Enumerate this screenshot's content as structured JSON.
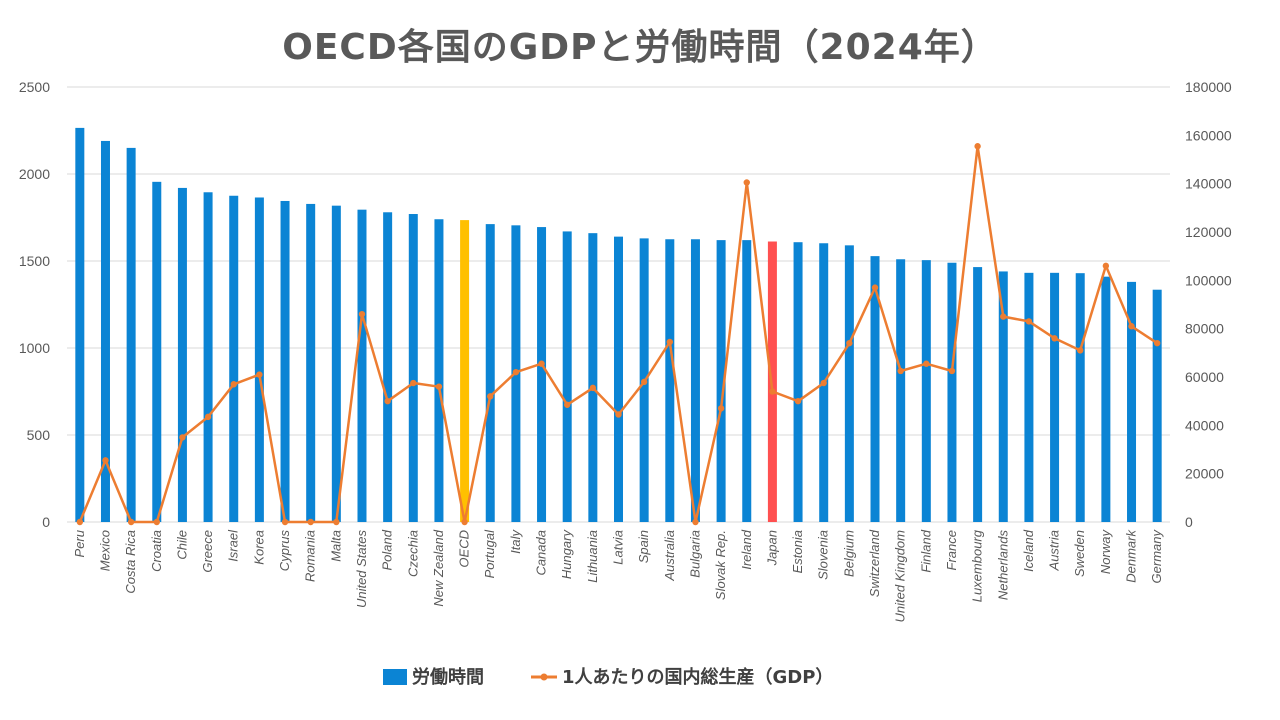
{
  "chart_data": {
    "type": "bar+line",
    "title": "OECD各国のGDPと労働時間（2024年）",
    "categories": [
      "Peru",
      "Mexico",
      "Costa Rica",
      "Croatia",
      "Chile",
      "Greece",
      "Israel",
      "Korea",
      "Cyprus",
      "Romania",
      "Malta",
      "United States",
      "Poland",
      "Czechia",
      "New Zealand",
      "OECD",
      "Portugal",
      "Italy",
      "Canada",
      "Hungary",
      "Lithuania",
      "Latvia",
      "Spain",
      "Australia",
      "Bulgaria",
      "Slovak Rep.",
      "Ireland",
      "Japan",
      "Estonia",
      "Slovenia",
      "Belgium",
      "Switzerland",
      "United Kingdom",
      "Finland",
      "France",
      "Luxembourg",
      "Netherlands",
      "Iceland",
      "Austria",
      "Sweden",
      "Norway",
      "Denmark",
      "Germany"
    ],
    "series": [
      {
        "name": "労働時間",
        "type": "bar",
        "axis": "left",
        "color": "#0B84D4",
        "values": [
          2265,
          2190,
          2150,
          1955,
          1920,
          1895,
          1875,
          1865,
          1845,
          1828,
          1818,
          1795,
          1780,
          1770,
          1740,
          1735,
          1712,
          1705,
          1695,
          1670,
          1660,
          1640,
          1630,
          1625,
          1625,
          1620,
          1620,
          1612,
          1608,
          1602,
          1590,
          1528,
          1510,
          1505,
          1490,
          1465,
          1440,
          1432,
          1432,
          1430,
          1410,
          1380,
          1335
        ]
      },
      {
        "name": "1人あたりの国内総生産（GDP）",
        "type": "line",
        "axis": "right",
        "color": "#ED7D31",
        "values": [
          0,
          25500,
          0,
          0,
          35000,
          43500,
          57000,
          61000,
          0,
          0,
          0,
          86000,
          50000,
          57500,
          56000,
          0,
          52000,
          62000,
          65500,
          48500,
          55500,
          44500,
          58000,
          74500,
          0,
          47000,
          140500,
          54000,
          50000,
          57500,
          74000,
          97000,
          62500,
          65500,
          62500,
          155500,
          85000,
          83000,
          76000,
          71000,
          106000,
          81000,
          74000
        ]
      }
    ],
    "highlights": {
      "OECD": "#FFC000",
      "Japan": "#FF5050"
    },
    "y_left": {
      "min": 0,
      "max": 2500,
      "ticks": [
        0,
        500,
        1000,
        1500,
        2000,
        2500
      ]
    },
    "y_right": {
      "min": 0,
      "max": 180000,
      "ticks": [
        0,
        20000,
        40000,
        60000,
        80000,
        100000,
        120000,
        140000,
        160000,
        180000
      ]
    },
    "grid": true,
    "legend_position": "bottom"
  }
}
